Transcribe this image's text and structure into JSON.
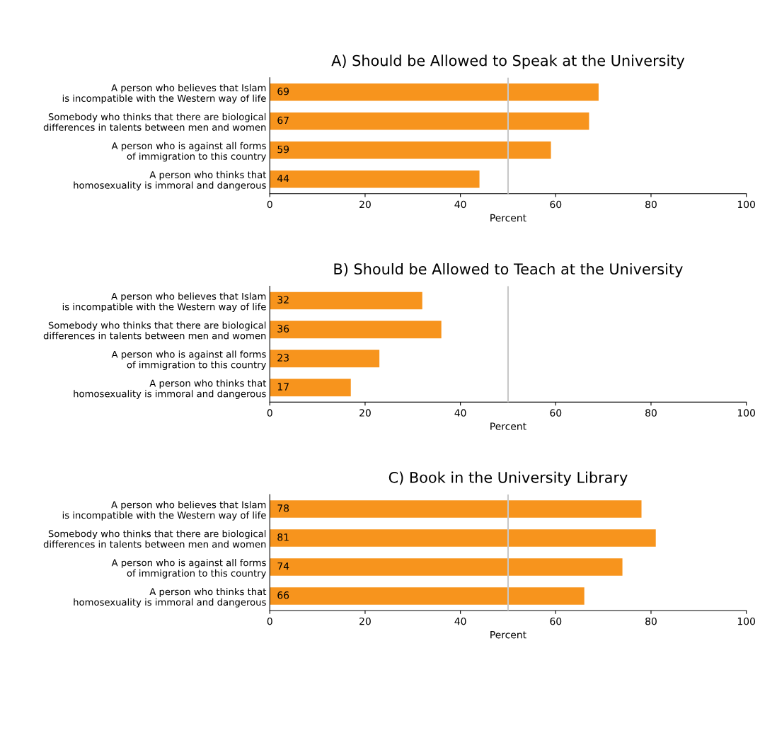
{
  "chart_data": [
    {
      "type": "bar",
      "orientation": "horizontal",
      "title": "A) Should be Allowed to Speak at the University",
      "xlabel": "Percent",
      "categories": [
        "A person who believes that Islam\nis incompatible with the Western way of life",
        "Somebody who thinks that there are biological\ndifferences in talents between men and women",
        "A person who is against all forms\nof immigration to this country",
        "A person who thinks that\nhomosexuality is immoral and dangerous"
      ],
      "values": [
        69,
        67,
        59,
        44
      ],
      "color": "#f7941d",
      "data_labels": true,
      "xlim": [
        0,
        100
      ],
      "xticks": [
        0,
        20,
        40,
        60,
        80,
        100
      ],
      "grid": false,
      "legend": false,
      "ref_lines": [
        {
          "axis": "x",
          "value": 50,
          "color": "#c8c8c8"
        }
      ]
    },
    {
      "type": "bar",
      "orientation": "horizontal",
      "title": "B) Should be Allowed to Teach at the University",
      "xlabel": "Percent",
      "categories": [
        "A person who believes that Islam\nis incompatible with the Western way of life",
        "Somebody who thinks that there are biological\ndifferences in talents between men and women",
        "A person who is against all forms\nof immigration to this country",
        "A person who thinks that\nhomosexuality is immoral and dangerous"
      ],
      "values": [
        32,
        36,
        23,
        17
      ],
      "color": "#f7941d",
      "data_labels": true,
      "xlim": [
        0,
        100
      ],
      "xticks": [
        0,
        20,
        40,
        60,
        80,
        100
      ],
      "grid": false,
      "legend": false,
      "ref_lines": [
        {
          "axis": "x",
          "value": 50,
          "color": "#c8c8c8"
        }
      ]
    },
    {
      "type": "bar",
      "orientation": "horizontal",
      "title": "C) Book in the University Library",
      "xlabel": "Percent",
      "categories": [
        "A person who believes that Islam\nis incompatible with the Western way of life",
        "Somebody who thinks that there are biological\ndifferences in talents between men and women",
        "A person who is against all forms\nof immigration to this country",
        "A person who thinks that\nhomosexuality is immoral and dangerous"
      ],
      "values": [
        78,
        81,
        74,
        66
      ],
      "color": "#f7941d",
      "data_labels": true,
      "xlim": [
        0,
        100
      ],
      "xticks": [
        0,
        20,
        40,
        60,
        80,
        100
      ],
      "grid": false,
      "legend": false,
      "ref_lines": [
        {
          "axis": "x",
          "value": 50,
          "color": "#c8c8c8"
        }
      ]
    }
  ]
}
